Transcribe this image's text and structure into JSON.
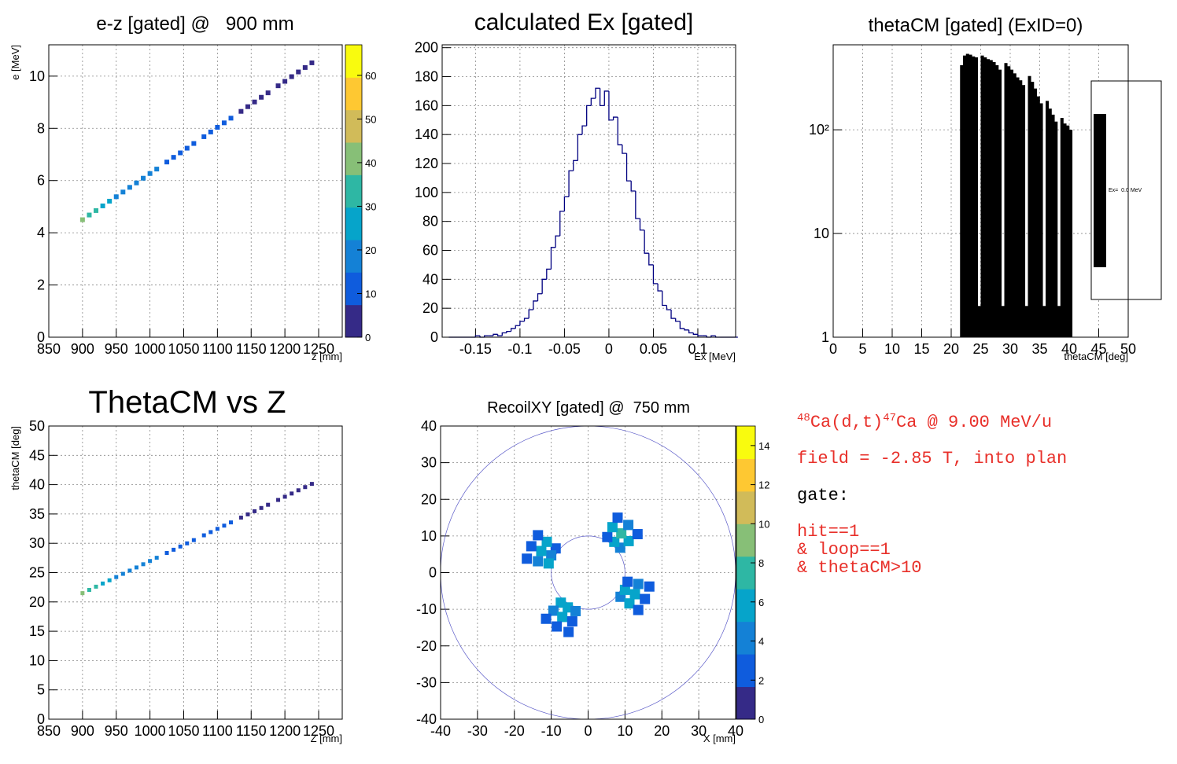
{
  "chart_data": [
    {
      "type": "scatter",
      "title": "e-z [gated] @   900 mm",
      "x_label": "z [mm]",
      "y_label": "e [MeV]",
      "xlim": [
        850,
        1285
      ],
      "ylim": [
        0,
        11.2
      ],
      "xticks": [
        850,
        900,
        950,
        1000,
        1050,
        1100,
        1150,
        1200,
        1250
      ],
      "yticks": [
        0,
        2,
        4,
        6,
        8,
        10
      ],
      "zlim": [
        0,
        67
      ],
      "zticks": [
        0,
        10,
        20,
        30,
        40,
        50,
        60
      ],
      "colorbar": true,
      "grid": true,
      "colormap": [
        "#352a87",
        "#0f5cdd",
        "#1481d6",
        "#06a4ca",
        "#2eb7a4",
        "#87bf77",
        "#d1bb59",
        "#fec832",
        "#f9fb0e"
      ],
      "x": [
        900,
        910,
        920,
        930,
        940,
        950,
        960,
        970,
        980,
        990,
        1000,
        1010,
        1025,
        1035,
        1045,
        1055,
        1065,
        1080,
        1090,
        1100,
        1110,
        1120,
        1135,
        1145,
        1155,
        1165,
        1175,
        1190,
        1200,
        1210,
        1220,
        1230,
        1240
      ],
      "y": [
        4.5,
        4.68,
        4.85,
        5.03,
        5.21,
        5.38,
        5.56,
        5.74,
        5.91,
        6.09,
        6.27,
        6.44,
        6.71,
        6.89,
        7.06,
        7.24,
        7.42,
        7.68,
        7.86,
        8.04,
        8.21,
        8.39,
        8.65,
        8.83,
        9.01,
        9.19,
        9.36,
        9.63,
        9.8,
        9.98,
        10.16,
        10.33,
        10.51
      ],
      "z": [
        40,
        35,
        30,
        28,
        25,
        22,
        20,
        22,
        18,
        18,
        15,
        15,
        12,
        12,
        10,
        10,
        10,
        8,
        8,
        8,
        8,
        8,
        7,
        7,
        7,
        6,
        6,
        6,
        6,
        6,
        5,
        5,
        5
      ]
    },
    {
      "type": "histogram",
      "title": "calculated Ex [gated]",
      "x_label": "Ex [MeV]",
      "style": "step",
      "color": "#000080",
      "xlim": [
        -0.1875,
        0.1425
      ],
      "ylim": [
        0,
        202
      ],
      "grid": true,
      "xticks": [
        -0.15,
        -0.1,
        -0.05,
        0,
        0.05,
        0.1
      ],
      "yticks": [
        0,
        20,
        40,
        60,
        80,
        100,
        120,
        140,
        160,
        180,
        200
      ],
      "bins": [
        -0.18,
        -0.175,
        -0.17,
        -0.165,
        -0.16,
        -0.155,
        -0.15,
        -0.145,
        -0.14,
        -0.135,
        -0.13,
        -0.125,
        -0.12,
        -0.115,
        -0.11,
        -0.105,
        -0.1,
        -0.095,
        -0.09,
        -0.085,
        -0.08,
        -0.075,
        -0.07,
        -0.065,
        -0.06,
        -0.055,
        -0.05,
        -0.045,
        -0.04,
        -0.035,
        -0.03,
        -0.025,
        -0.02,
        -0.015,
        -0.01,
        -0.005,
        0,
        0.005,
        0.01,
        0.015,
        0.02,
        0.025,
        0.03,
        0.035,
        0.04,
        0.045,
        0.05,
        0.055,
        0.06,
        0.065,
        0.07,
        0.075,
        0.08,
        0.085,
        0.09,
        0.095,
        0.1,
        0.105,
        0.11,
        0.115,
        0.12,
        0.125,
        0.13,
        0.135,
        0.14,
        0.145
      ],
      "values": [
        0,
        0,
        0,
        0,
        0,
        0,
        1,
        0,
        1,
        1,
        2,
        1,
        3,
        4,
        6,
        8,
        11,
        13,
        19,
        25,
        30,
        40,
        47,
        62,
        70,
        87,
        97,
        115,
        122,
        140,
        146,
        160,
        165,
        172,
        160,
        170,
        150,
        152,
        133,
        127,
        108,
        101,
        82,
        74,
        58,
        50,
        37,
        32,
        22,
        19,
        13,
        11,
        6,
        5,
        3,
        2,
        1,
        1,
        0,
        1,
        0,
        0,
        0,
        0,
        0
      ]
    },
    {
      "type": "histogram",
      "title": "thetaCM [gated] (ExID=0)",
      "x_label": "thetaCM [deg]",
      "style": "filled",
      "log_y": true,
      "legend": "right",
      "grid": true,
      "xlim": [
        0,
        50
      ],
      "ylim": [
        1,
        660
      ],
      "xticks": [
        0,
        5,
        10,
        15,
        20,
        25,
        30,
        35,
        40,
        45,
        50
      ],
      "yticks": [
        1,
        10,
        {
          "value": 100,
          "label": "10²"
        }
      ],
      "bins": [
        21.5,
        22,
        22.5,
        23,
        23.5,
        24,
        24.5,
        25,
        25.5,
        26,
        26.5,
        27,
        27.5,
        28,
        28.5,
        29,
        29.5,
        30,
        30.5,
        31,
        31.5,
        32,
        32.5,
        33,
        33.5,
        34,
        34.5,
        35,
        35.5,
        36,
        36.5,
        37,
        37.5,
        38,
        38.5,
        39,
        39.5,
        40,
        40.5
      ],
      "series": [
        {
          "name": "Ex=  0.0 MeV",
          "color": "#000000",
          "values": [
            420,
            520,
            540,
            530,
            510,
            500,
            2,
            520,
            500,
            480,
            470,
            450,
            420,
            380,
            2,
            440,
            410,
            380,
            350,
            320,
            300,
            270,
            2,
            330,
            290,
            250,
            210,
            180,
            2,
            190,
            160,
            140,
            120,
            2,
            130,
            115,
            110,
            100
          ]
        }
      ]
    },
    {
      "type": "scatter",
      "title": "ThetaCM vs Z",
      "x_label": "Z [mm]",
      "y_label": "thetaCM [deg]",
      "xlim": [
        850,
        1285
      ],
      "ylim": [
        0,
        50
      ],
      "zlim": [
        0,
        67
      ],
      "colorbar": false,
      "grid": true,
      "xticks": [
        850,
        900,
        950,
        1000,
        1050,
        1100,
        1150,
        1200,
        1250
      ],
      "yticks": [
        0,
        5,
        10,
        15,
        20,
        25,
        30,
        35,
        40,
        45,
        50
      ],
      "colormap": [
        "#352a87",
        "#0f5cdd",
        "#1481d6",
        "#06a4ca",
        "#2eb7a4",
        "#87bf77",
        "#d1bb59",
        "#fec832",
        "#f9fb0e"
      ],
      "x": [
        900,
        910,
        920,
        930,
        940,
        950,
        960,
        970,
        980,
        990,
        1000,
        1010,
        1025,
        1035,
        1045,
        1055,
        1065,
        1080,
        1090,
        1100,
        1110,
        1120,
        1135,
        1145,
        1155,
        1165,
        1175,
        1190,
        1200,
        1210,
        1220,
        1230,
        1240
      ],
      "y": [
        21.5,
        22.05,
        22.6,
        23.14,
        23.69,
        24.24,
        24.79,
        25.34,
        25.88,
        26.43,
        26.98,
        27.53,
        28.35,
        28.9,
        29.45,
        29.99,
        30.54,
        31.36,
        31.91,
        32.46,
        33.01,
        33.56,
        34.38,
        34.93,
        35.47,
        36.02,
        36.57,
        37.39,
        37.94,
        38.49,
        39.04,
        39.58,
        40.13
      ],
      "z": [
        40,
        35,
        30,
        28,
        25,
        22,
        20,
        22,
        18,
        18,
        15,
        15,
        12,
        12,
        10,
        10,
        10,
        8,
        8,
        8,
        8,
        8,
        7,
        7,
        7,
        6,
        6,
        6,
        6,
        6,
        5,
        5,
        5
      ]
    },
    {
      "type": "scatter",
      "title": "RecoilXY [gated] @  750 mm",
      "x_label": "X [mm]",
      "xlim": [
        -40,
        40
      ],
      "ylim": [
        -40,
        40
      ],
      "zlim": [
        0,
        15
      ],
      "zticks": [
        0,
        2,
        4,
        6,
        8,
        10,
        12,
        14
      ],
      "colorbar": true,
      "grid": true,
      "xticks": [
        -40,
        -30,
        -20,
        -10,
        0,
        10,
        20,
        30,
        40
      ],
      "yticks": [
        -40,
        -30,
        -20,
        -10,
        0,
        10,
        20,
        30,
        40
      ],
      "circles": [
        40,
        10
      ],
      "circle_color": "#5a5ac8",
      "colormap": [
        "#352a87",
        "#0f5cdd",
        "#1481d6",
        "#06a4ca",
        "#2eb7a4",
        "#87bf77",
        "#d1bb59",
        "#fec832",
        "#f9fb0e"
      ],
      "x": [
        8.7,
        7.1,
        5.2,
        11.0,
        9.0,
        6.6,
        13.4,
        10.9,
        8.0,
        -8.8,
        -10.0,
        -10.7,
        -11.2,
        -12.7,
        -13.6,
        -13.6,
        -15.4,
        -16.6,
        -7.4,
        -5.5,
        -3.4,
        -9.4,
        -7.0,
        -4.3,
        -11.4,
        -8.5,
        -5.3,
        8.8,
        10.0,
        10.7,
        11.2,
        12.7,
        13.6,
        13.6,
        15.4,
        16.6
      ],
      "y": [
        6.8,
        8.4,
        9.7,
        8.6,
        10.7,
        12.4,
        10.5,
        13.0,
        15.0,
        6.6,
        4.7,
        2.5,
        8.4,
        5.9,
        3.1,
        10.2,
        7.2,
        3.8,
        -8.2,
        -9.5,
        -10.5,
        -10.4,
        -12.1,
        -13.3,
        -12.6,
        -14.7,
        -16.2,
        -6.6,
        -4.7,
        -2.5,
        -8.4,
        -5.9,
        -3.1,
        -10.2,
        -7.2,
        -3.8
      ],
      "z": [
        4,
        5,
        3,
        6,
        7,
        5,
        3,
        4,
        2,
        3,
        4,
        5,
        5,
        6,
        4,
        2,
        3,
        3,
        5,
        6,
        4,
        4,
        5,
        3,
        2,
        3,
        2,
        4,
        5,
        3,
        5,
        6,
        4,
        3,
        3,
        2
      ]
    }
  ],
  "notes": {
    "reaction": {
      "mass_a": "48",
      "a": "Ca(d,t)",
      "mass_b": "47",
      "b": "Ca @ 9.00 MeV/u"
    },
    "field": "field = -2.85 T, into plan",
    "gate_title": "gate:",
    "gate_lines": [
      "hit==1",
      "& loop==1",
      "& thetaCM>10"
    ]
  }
}
